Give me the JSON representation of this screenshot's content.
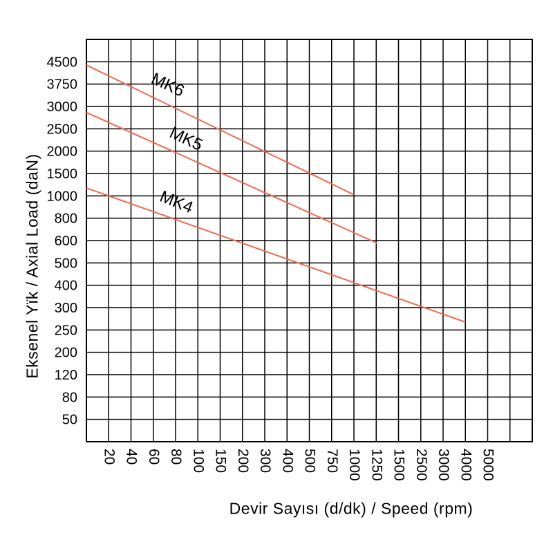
{
  "chart_data": {
    "type": "line",
    "title": "",
    "xlabel": "Devir Sayısı (d/dk) / Speed (rpm)",
    "ylabel": "Eksenel Yïk /  Axial Load  (daN)",
    "x_tick_labels": [
      "20",
      "40",
      "60",
      "80",
      "100",
      "150",
      "200",
      "300",
      "400",
      "500",
      "750",
      "1000",
      "1250",
      "1500",
      "2500",
      "3000",
      "4000",
      "5000"
    ],
    "y_tick_labels": [
      "4500",
      "3750",
      "3000",
      "2500",
      "2000",
      "1500",
      "1000",
      "800",
      "600",
      "500",
      "400",
      "300",
      "250",
      "200",
      "120",
      "80",
      "50"
    ],
    "axis_style": "quasi-logarithmic: one uniform grid step per labeled tick; 1 unlabeled column left of first x tick, 2 unlabeled columns right of last x tick, 1 unlabeled row above first y tick and 1 below last y tick",
    "grid": true,
    "legend_position": "inline-labels-on-lines",
    "series_color": "#f4694c",
    "grid_color": "#000000",
    "text_color": "#000000",
    "series": [
      {
        "name": "MK6",
        "points_data": [
          {
            "rpm": "plot-left-edge",
            "daN": 4400
          },
          {
            "rpm": 1000,
            "daN": 1000
          }
        ],
        "points_grid": [
          [
            0,
            1.15
          ],
          [
            12.0,
            6.95
          ]
        ],
        "label": {
          "text": "MK6",
          "grid_pos": [
            3.55,
            2.25
          ],
          "rotation_deg": 25
        }
      },
      {
        "name": "MK5",
        "points_data": [
          {
            "rpm": "plot-left-edge",
            "daN": 2900
          },
          {
            "rpm": 1250,
            "daN": 580
          }
        ],
        "points_grid": [
          [
            0,
            3.27
          ],
          [
            13.05,
            9.12
          ]
        ],
        "label": {
          "text": "MK5",
          "grid_pos": [
            4.37,
            4.67
          ],
          "rotation_deg": 25
        }
      },
      {
        "name": "MK4",
        "points_data": [
          {
            "rpm": "plot-left-edge",
            "daN": 1190
          },
          {
            "rpm": 4000,
            "daN": 270
          }
        ],
        "points_grid": [
          [
            0,
            6.65
          ],
          [
            17.0,
            12.65
          ]
        ],
        "label": {
          "text": "MK4",
          "grid_pos": [
            3.95,
            7.5
          ],
          "rotation_deg": 22
        }
      }
    ]
  }
}
